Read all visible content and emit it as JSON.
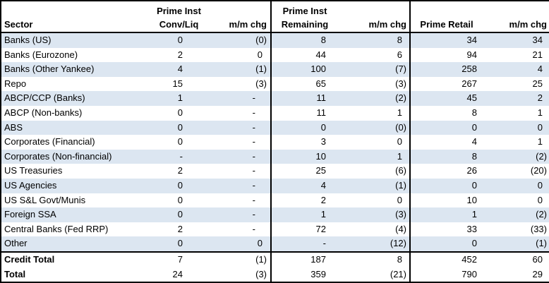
{
  "colors": {
    "row_band": "#dce6f1",
    "border": "#000000",
    "background": "#ffffff"
  },
  "chart_data": {
    "type": "table",
    "title": "",
    "col_keys": [
      "sector",
      "conv",
      "mm1",
      "remaining",
      "mm2",
      "retail",
      "mm3"
    ],
    "header": {
      "sector": {
        "line1": "",
        "line2": "Sector"
      },
      "conv": {
        "line1": "Prime Inst",
        "line2": "Conv/Liq"
      },
      "mm1": {
        "line1": "",
        "line2": "m/m chg"
      },
      "remaining": {
        "line1": "Prime Inst",
        "line2": "Remaining"
      },
      "mm2": {
        "line1": "",
        "line2": "m/m chg"
      },
      "retail": {
        "line1": "",
        "line2": "Prime Retail"
      },
      "mm3": {
        "line1": "",
        "line2": "m/m chg"
      }
    },
    "rows": [
      {
        "sector": "Banks (US)",
        "conv": "0",
        "mm1": "(0)",
        "remaining": "8",
        "mm2": "8",
        "retail": "34",
        "mm3": "34",
        "section": "data"
      },
      {
        "sector": "Banks (Eurozone)",
        "conv": "2",
        "mm1": "0",
        "remaining": "44",
        "mm2": "6",
        "retail": "94",
        "mm3": "21",
        "section": "data"
      },
      {
        "sector": "Banks (Other Yankee)",
        "conv": "4",
        "mm1": "(1)",
        "remaining": "100",
        "mm2": "(7)",
        "retail": "258",
        "mm3": "4",
        "section": "data"
      },
      {
        "sector": "Repo",
        "conv": "15",
        "mm1": "(3)",
        "remaining": "65",
        "mm2": "(3)",
        "retail": "267",
        "mm3": "25",
        "section": "data"
      },
      {
        "sector": "ABCP/CCP (Banks)",
        "conv": "1",
        "mm1": "-",
        "remaining": "11",
        "mm2": "(2)",
        "retail": "45",
        "mm3": "2",
        "section": "data"
      },
      {
        "sector": "ABCP (Non-banks)",
        "conv": "0",
        "mm1": "-",
        "remaining": "11",
        "mm2": "1",
        "retail": "8",
        "mm3": "1",
        "section": "data"
      },
      {
        "sector": "ABS",
        "conv": "0",
        "mm1": "-",
        "remaining": "0",
        "mm2": "(0)",
        "retail": "0",
        "mm3": "0",
        "section": "data"
      },
      {
        "sector": "Corporates (Financial)",
        "conv": "0",
        "mm1": "-",
        "remaining": "3",
        "mm2": "0",
        "retail": "4",
        "mm3": "1",
        "section": "data"
      },
      {
        "sector": "Corporates (Non-financial)",
        "conv": "-",
        "mm1": "-",
        "remaining": "10",
        "mm2": "1",
        "retail": "8",
        "mm3": "(2)",
        "section": "data"
      },
      {
        "sector": "US Treasuries",
        "conv": "2",
        "mm1": "-",
        "remaining": "25",
        "mm2": "(6)",
        "retail": "26",
        "mm3": "(20)",
        "section": "data"
      },
      {
        "sector": "US Agencies",
        "conv": "0",
        "mm1": "-",
        "remaining": "4",
        "mm2": "(1)",
        "retail": "0",
        "mm3": "0",
        "section": "data"
      },
      {
        "sector": "US S&L Govt/Munis",
        "conv": "0",
        "mm1": "-",
        "remaining": "2",
        "mm2": "0",
        "retail": "10",
        "mm3": "0",
        "section": "data"
      },
      {
        "sector": "Foreign SSA",
        "conv": "0",
        "mm1": "-",
        "remaining": "1",
        "mm2": "(3)",
        "retail": "1",
        "mm3": "(2)",
        "section": "data"
      },
      {
        "sector": "Central Banks (Fed RRP)",
        "conv": "2",
        "mm1": "-",
        "remaining": "72",
        "mm2": "(4)",
        "retail": "33",
        "mm3": "(33)",
        "section": "data"
      },
      {
        "sector": "Other",
        "conv": "0",
        "mm1": "0",
        "remaining": "-",
        "mm2": "(12)",
        "retail": "0",
        "mm3": "(1)",
        "section": "data"
      },
      {
        "sector": "Credit Total",
        "conv": "7",
        "mm1": "(1)",
        "remaining": "187",
        "mm2": "8",
        "retail": "452",
        "mm3": "60",
        "section": "total"
      },
      {
        "sector": "Total",
        "conv": "24",
        "mm1": "(3)",
        "remaining": "359",
        "mm2": "(21)",
        "retail": "790",
        "mm3": "29",
        "section": "total"
      }
    ]
  }
}
